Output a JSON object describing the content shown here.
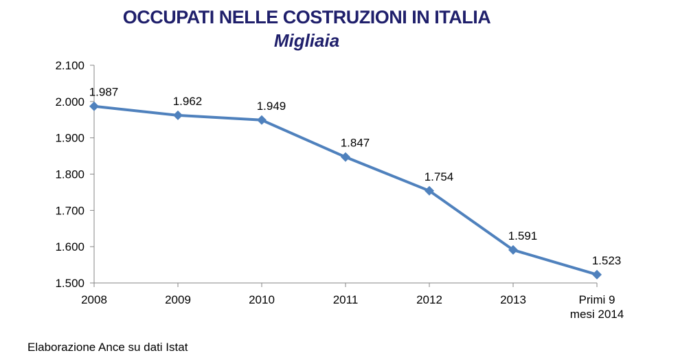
{
  "header": {
    "title": "OCCUPATI NELLE COSTRUZIONI IN ITALIA",
    "subtitle": "Migliaia"
  },
  "footer": {
    "source": "Elaborazione Ance su dati Istat"
  },
  "colors": {
    "line": "#4f81bd",
    "axis": "#868686",
    "title": "#1f1f6b"
  },
  "chart_data": {
    "type": "line",
    "title": "OCCUPATI NELLE COSTRUZIONI IN ITALIA",
    "subtitle": "Migliaia",
    "categories": [
      [
        "2008"
      ],
      [
        "2009"
      ],
      [
        "2010"
      ],
      [
        "2011"
      ],
      [
        "2012"
      ],
      [
        "2013"
      ],
      [
        "Primi 9",
        "mesi 2014"
      ]
    ],
    "values": [
      1987,
      1962,
      1949,
      1847,
      1754,
      1591,
      1523
    ],
    "value_labels": [
      "1.987",
      "1.962",
      "1.949",
      "1.847",
      "1.754",
      "1.591",
      "1.523"
    ],
    "ylim": [
      1500,
      2100
    ],
    "yticks": [
      1500,
      1600,
      1700,
      1800,
      1900,
      2000,
      2100
    ],
    "ytick_labels": [
      "1.500",
      "1.600",
      "1.700",
      "1.800",
      "1.900",
      "2.000",
      "2.100"
    ],
    "marker": "diamond",
    "grid": false,
    "legend": "none"
  }
}
